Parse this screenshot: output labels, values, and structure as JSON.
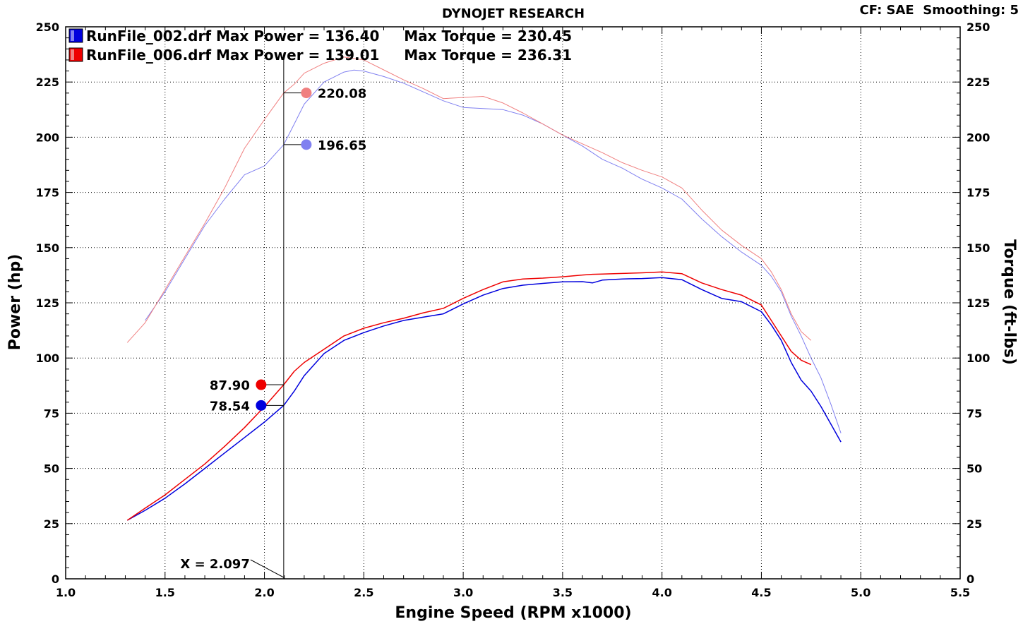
{
  "header": {
    "title": "DYNOJET RESEARCH",
    "settings": "CF: SAE  Smoothing: 5"
  },
  "legend": [
    {
      "text": "RunFile_002.drf Max Power = 136.40     Max Torque = 230.45",
      "color": "#0000dd"
    },
    {
      "text": "RunFile_006.drf Max Power = 139.01     Max Torque = 236.31",
      "color": "#ee0000"
    }
  ],
  "cursor": {
    "label": "X = 2.097",
    "x": 2.097,
    "markers": [
      {
        "label": "220.08",
        "value": 220.08,
        "color": "#f08080",
        "side": "right"
      },
      {
        "label": "196.65",
        "value": 196.65,
        "color": "#8080f0",
        "side": "right"
      },
      {
        "label": "87.90",
        "value": 87.9,
        "color": "#ee0000",
        "side": "left"
      },
      {
        "label": "78.54",
        "value": 78.54,
        "color": "#0000dd",
        "side": "left"
      }
    ]
  },
  "chart_data": {
    "type": "line",
    "title": "DYNOJET RESEARCH",
    "xlabel": "Engine Speed (RPM x1000)",
    "ylabel": "Power (hp)",
    "y2label": "Torque (ft-lbs)",
    "xlim": [
      1.0,
      5.5
    ],
    "ylim": [
      0,
      250
    ],
    "x_ticks": [
      "1.0",
      "1.5",
      "2.0",
      "2.5",
      "3.0",
      "3.5",
      "4.0",
      "4.5",
      "5.0",
      "5.5"
    ],
    "y_ticks": [
      "0",
      "25",
      "50",
      "75",
      "100",
      "125",
      "150",
      "175",
      "200",
      "225",
      "250"
    ],
    "y2_ticks": [
      "0",
      "25",
      "50",
      "75",
      "100",
      "125",
      "150",
      "175",
      "200",
      "225",
      "250"
    ],
    "grid": true,
    "series": [
      {
        "name": "RunFile_002.drf",
        "quantity": "power",
        "color": "#0000dd",
        "width": 1.5,
        "x": [
          1.31,
          1.4,
          1.5,
          1.6,
          1.7,
          1.8,
          1.9,
          2.0,
          2.097,
          2.15,
          2.2,
          2.3,
          2.4,
          2.5,
          2.6,
          2.7,
          2.8,
          2.9,
          3.0,
          3.1,
          3.2,
          3.3,
          3.4,
          3.5,
          3.6,
          3.65,
          3.7,
          3.8,
          3.9,
          4.0,
          4.1,
          4.2,
          4.3,
          4.4,
          4.5,
          4.55,
          4.6,
          4.65,
          4.7,
          4.75,
          4.8,
          4.85,
          4.9
        ],
        "y": [
          26.5,
          31,
          36.5,
          43,
          50,
          57,
          64,
          71,
          78.54,
          85,
          92,
          102,
          108,
          111.5,
          114.5,
          117,
          118.5,
          120,
          124.5,
          128.5,
          131.5,
          133,
          133.8,
          134.5,
          134.6,
          134,
          135.3,
          135.8,
          136,
          136.4,
          135.5,
          131,
          127,
          125.5,
          121,
          115,
          108,
          98,
          90,
          85,
          78,
          70,
          62
        ]
      },
      {
        "name": "RunFile_006.drf",
        "quantity": "power",
        "color": "#ee0000",
        "width": 1.5,
        "x": [
          1.31,
          1.4,
          1.5,
          1.6,
          1.7,
          1.8,
          1.9,
          2.0,
          2.097,
          2.15,
          2.2,
          2.3,
          2.4,
          2.5,
          2.6,
          2.7,
          2.8,
          2.9,
          3.0,
          3.1,
          3.2,
          3.3,
          3.4,
          3.5,
          3.6,
          3.65,
          3.7,
          3.8,
          3.9,
          4.0,
          4.1,
          4.2,
          4.3,
          4.4,
          4.5,
          4.55,
          4.6,
          4.65,
          4.7,
          4.75
        ],
        "y": [
          26.5,
          32,
          38,
          45,
          52,
          60,
          68.5,
          78,
          87.9,
          94,
          98,
          104,
          110,
          113.5,
          116,
          118,
          120.5,
          122.5,
          127,
          131,
          134.5,
          135.8,
          136.2,
          136.8,
          137.6,
          137.9,
          138,
          138.3,
          138.6,
          139.01,
          138.2,
          134,
          131,
          128.5,
          124,
          117,
          110,
          103,
          99,
          97
        ]
      },
      {
        "name": "RunFile_002.drf",
        "quantity": "torque",
        "color": "#8080f0",
        "width": 1,
        "x": [
          1.4,
          1.5,
          1.6,
          1.7,
          1.8,
          1.9,
          2.0,
          2.097,
          2.15,
          2.2,
          2.3,
          2.4,
          2.45,
          2.5,
          2.6,
          2.7,
          2.8,
          2.9,
          3.0,
          3.1,
          3.2,
          3.3,
          3.4,
          3.5,
          3.6,
          3.7,
          3.8,
          3.9,
          4.0,
          4.1,
          4.2,
          4.3,
          4.4,
          4.5,
          4.55,
          4.6,
          4.65,
          4.7,
          4.75,
          4.8,
          4.85,
          4.9
        ],
        "y": [
          117,
          130,
          145,
          160,
          172,
          183,
          187,
          196.65,
          206,
          215,
          225,
          229.5,
          230.45,
          230,
          227.5,
          224.5,
          220.5,
          216.5,
          213.5,
          213,
          212.5,
          210,
          206,
          201,
          196,
          190,
          186,
          181,
          177,
          172,
          163,
          155,
          148,
          142,
          137,
          130,
          119,
          110,
          100,
          91,
          79,
          66
        ]
      },
      {
        "name": "RunFile_006.drf",
        "quantity": "torque",
        "color": "#f08080",
        "width": 1,
        "x": [
          1.31,
          1.4,
          1.5,
          1.6,
          1.7,
          1.8,
          1.9,
          2.0,
          2.097,
          2.15,
          2.2,
          2.3,
          2.4,
          2.5,
          2.6,
          2.7,
          2.8,
          2.9,
          3.0,
          3.1,
          3.2,
          3.3,
          3.4,
          3.5,
          3.6,
          3.7,
          3.8,
          3.9,
          4.0,
          4.1,
          4.2,
          4.3,
          4.4,
          4.5,
          4.55,
          4.6,
          4.65,
          4.7,
          4.75
        ],
        "y": [
          107,
          116,
          131,
          146,
          161,
          177,
          195,
          208,
          220.08,
          224,
          229,
          233.5,
          236.31,
          235,
          230.5,
          226,
          222,
          217.5,
          218,
          218.5,
          215.5,
          211,
          206,
          201,
          197,
          193,
          188.5,
          185,
          182,
          177,
          167,
          158,
          151,
          145,
          139,
          131,
          120,
          112,
          108
        ]
      }
    ]
  }
}
